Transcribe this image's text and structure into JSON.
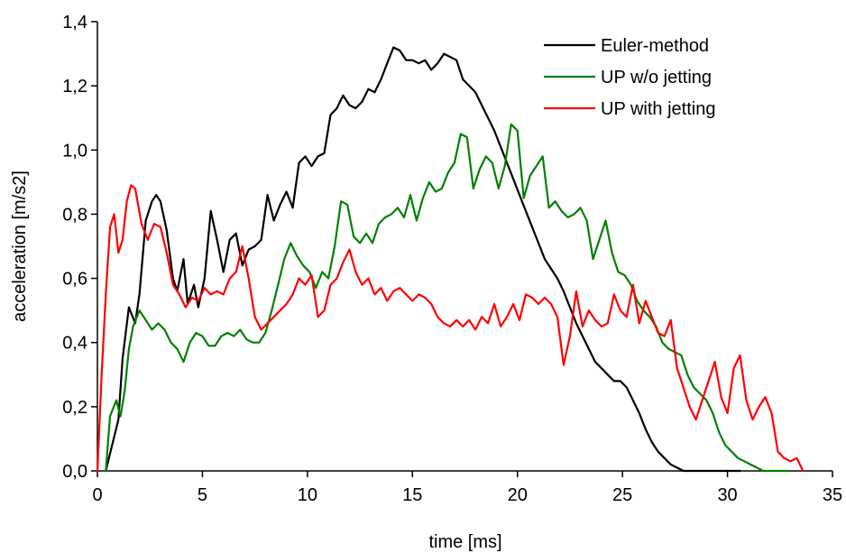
{
  "chart_data": {
    "type": "line",
    "xlabel": "time [ms]",
    "ylabel": "acceleration [m/s2]",
    "xlim": [
      0,
      35
    ],
    "ylim": [
      0,
      1.4
    ],
    "x_ticks": [
      "0",
      "5",
      "10",
      "15",
      "20",
      "25",
      "30",
      "35"
    ],
    "y_ticks": [
      "0,0",
      "0,2",
      "0,4",
      "0,6",
      "0,8",
      "1,0",
      "1,2",
      "1,4"
    ],
    "grid": false,
    "legend_position": "top-right",
    "series": [
      {
        "name": "Euler-method",
        "color": "#000000",
        "x": [
          0.4,
          0.7,
          1.0,
          1.2,
          1.5,
          1.8,
          2.0,
          2.3,
          2.6,
          2.8,
          3.0,
          3.3,
          3.6,
          3.8,
          4.1,
          4.3,
          4.6,
          4.8,
          5.1,
          5.4,
          5.7,
          6.0,
          6.3,
          6.6,
          6.9,
          7.2,
          7.5,
          7.8,
          8.1,
          8.4,
          8.7,
          9.0,
          9.3,
          9.6,
          9.9,
          10.2,
          10.5,
          10.8,
          11.1,
          11.4,
          11.7,
          12.0,
          12.3,
          12.6,
          12.9,
          13.2,
          13.5,
          13.8,
          14.1,
          14.4,
          14.7,
          15.0,
          15.3,
          15.6,
          15.9,
          16.2,
          16.5,
          16.8,
          17.1,
          17.4,
          17.7,
          18.0,
          18.3,
          18.6,
          18.9,
          19.2,
          19.5,
          19.8,
          20.1,
          20.4,
          20.7,
          21.0,
          21.3,
          21.6,
          21.9,
          22.2,
          22.5,
          22.8,
          23.1,
          23.4,
          23.7,
          24.0,
          24.3,
          24.6,
          24.9,
          25.2,
          25.5,
          25.8,
          26.1,
          26.4,
          26.7,
          27.0,
          27.3,
          27.6,
          27.9,
          28.2,
          28.5,
          28.8,
          29.1,
          29.4,
          29.7,
          30.0,
          30.3,
          30.6
        ],
        "values": [
          0.0,
          0.08,
          0.16,
          0.35,
          0.51,
          0.46,
          0.55,
          0.78,
          0.84,
          0.86,
          0.84,
          0.75,
          0.6,
          0.56,
          0.66,
          0.52,
          0.58,
          0.51,
          0.6,
          0.81,
          0.72,
          0.62,
          0.72,
          0.74,
          0.64,
          0.69,
          0.7,
          0.72,
          0.86,
          0.78,
          0.83,
          0.87,
          0.82,
          0.96,
          0.98,
          0.95,
          0.98,
          0.99,
          1.11,
          1.13,
          1.17,
          1.14,
          1.13,
          1.15,
          1.19,
          1.18,
          1.22,
          1.27,
          1.32,
          1.31,
          1.28,
          1.28,
          1.27,
          1.28,
          1.25,
          1.27,
          1.3,
          1.29,
          1.28,
          1.22,
          1.2,
          1.18,
          1.14,
          1.1,
          1.06,
          1.01,
          0.96,
          0.91,
          0.86,
          0.81,
          0.76,
          0.71,
          0.66,
          0.63,
          0.6,
          0.56,
          0.51,
          0.46,
          0.42,
          0.38,
          0.34,
          0.32,
          0.3,
          0.28,
          0.28,
          0.26,
          0.22,
          0.18,
          0.13,
          0.09,
          0.06,
          0.04,
          0.02,
          0.01,
          0.0,
          0.0,
          0.0,
          0.0,
          0.0,
          0.0,
          0.0,
          0.0,
          0.0,
          0.0
        ]
      },
      {
        "name": "UP w/o jetting",
        "color": "#008000",
        "x": [
          0.4,
          0.6,
          0.9,
          1.1,
          1.3,
          1.5,
          1.7,
          2.0,
          2.3,
          2.6,
          2.9,
          3.2,
          3.5,
          3.8,
          4.1,
          4.4,
          4.7,
          5.0,
          5.3,
          5.6,
          5.9,
          6.2,
          6.5,
          6.8,
          7.1,
          7.4,
          7.7,
          8.0,
          8.3,
          8.6,
          8.9,
          9.2,
          9.5,
          9.8,
          10.1,
          10.4,
          10.7,
          11.0,
          11.3,
          11.6,
          11.9,
          12.2,
          12.5,
          12.8,
          13.1,
          13.4,
          13.7,
          14.0,
          14.3,
          14.6,
          14.9,
          15.2,
          15.5,
          15.8,
          16.1,
          16.4,
          16.7,
          17.0,
          17.3,
          17.6,
          17.9,
          18.2,
          18.5,
          18.8,
          19.1,
          19.4,
          19.7,
          20.0,
          20.3,
          20.6,
          20.9,
          21.2,
          21.5,
          21.8,
          22.1,
          22.4,
          22.7,
          23.0,
          23.3,
          23.6,
          23.9,
          24.2,
          24.5,
          24.8,
          25.1,
          25.4,
          25.7,
          26.0,
          26.3,
          26.6,
          26.9,
          27.2,
          27.5,
          27.8,
          28.1,
          28.4,
          28.7,
          29.0,
          29.3,
          29.6,
          29.9,
          30.2,
          30.5,
          30.8,
          31.1,
          31.4,
          31.7,
          32.0,
          32.3,
          32.6,
          32.9
        ],
        "values": [
          0.0,
          0.17,
          0.22,
          0.17,
          0.25,
          0.38,
          0.45,
          0.5,
          0.47,
          0.44,
          0.46,
          0.44,
          0.4,
          0.38,
          0.34,
          0.4,
          0.43,
          0.42,
          0.39,
          0.39,
          0.42,
          0.43,
          0.42,
          0.44,
          0.41,
          0.4,
          0.4,
          0.43,
          0.5,
          0.58,
          0.66,
          0.71,
          0.67,
          0.64,
          0.62,
          0.57,
          0.62,
          0.6,
          0.7,
          0.84,
          0.83,
          0.73,
          0.71,
          0.74,
          0.71,
          0.77,
          0.79,
          0.8,
          0.82,
          0.79,
          0.86,
          0.78,
          0.85,
          0.9,
          0.87,
          0.88,
          0.93,
          0.96,
          1.05,
          1.04,
          0.88,
          0.94,
          0.98,
          0.96,
          0.88,
          0.95,
          1.08,
          1.06,
          0.85,
          0.92,
          0.95,
          0.98,
          0.82,
          0.84,
          0.81,
          0.79,
          0.8,
          0.82,
          0.78,
          0.66,
          0.72,
          0.78,
          0.68,
          0.62,
          0.61,
          0.58,
          0.53,
          0.5,
          0.48,
          0.45,
          0.4,
          0.38,
          0.37,
          0.36,
          0.3,
          0.26,
          0.24,
          0.22,
          0.18,
          0.12,
          0.08,
          0.06,
          0.04,
          0.03,
          0.02,
          0.01,
          0.0,
          0.0,
          0.0,
          0.0,
          0.0
        ]
      },
      {
        "name": "UP with jetting",
        "color": "#ff0000",
        "x": [
          0.0,
          0.2,
          0.4,
          0.6,
          0.8,
          1.0,
          1.2,
          1.4,
          1.6,
          1.8,
          2.1,
          2.4,
          2.7,
          3.0,
          3.3,
          3.6,
          3.9,
          4.2,
          4.5,
          4.8,
          5.1,
          5.4,
          5.7,
          6.0,
          6.3,
          6.6,
          6.9,
          7.2,
          7.5,
          7.8,
          8.1,
          8.4,
          8.7,
          9.0,
          9.3,
          9.6,
          9.9,
          10.2,
          10.5,
          10.8,
          11.1,
          11.4,
          11.7,
          12.0,
          12.3,
          12.6,
          12.9,
          13.2,
          13.5,
          13.8,
          14.1,
          14.4,
          14.7,
          15.0,
          15.3,
          15.6,
          15.9,
          16.2,
          16.5,
          16.8,
          17.1,
          17.4,
          17.7,
          18.0,
          18.3,
          18.6,
          18.9,
          19.2,
          19.5,
          19.8,
          20.1,
          20.4,
          20.7,
          21.0,
          21.3,
          21.6,
          21.9,
          22.2,
          22.5,
          22.8,
          23.1,
          23.4,
          23.7,
          24.0,
          24.3,
          24.6,
          24.9,
          25.2,
          25.5,
          25.8,
          26.1,
          26.4,
          26.7,
          27.0,
          27.3,
          27.6,
          27.9,
          28.2,
          28.5,
          28.8,
          29.1,
          29.4,
          29.7,
          30.0,
          30.3,
          30.6,
          30.9,
          31.2,
          31.5,
          31.8,
          32.1,
          32.4,
          32.7,
          33.0,
          33.3,
          33.6
        ],
        "values": [
          0.0,
          0.3,
          0.55,
          0.76,
          0.8,
          0.68,
          0.72,
          0.84,
          0.89,
          0.88,
          0.77,
          0.72,
          0.77,
          0.76,
          0.68,
          0.58,
          0.55,
          0.51,
          0.54,
          0.53,
          0.57,
          0.55,
          0.56,
          0.55,
          0.6,
          0.62,
          0.7,
          0.6,
          0.48,
          0.44,
          0.46,
          0.48,
          0.5,
          0.52,
          0.55,
          0.6,
          0.58,
          0.61,
          0.48,
          0.5,
          0.58,
          0.6,
          0.65,
          0.69,
          0.62,
          0.58,
          0.6,
          0.55,
          0.57,
          0.53,
          0.56,
          0.57,
          0.55,
          0.53,
          0.55,
          0.54,
          0.52,
          0.48,
          0.46,
          0.45,
          0.47,
          0.45,
          0.47,
          0.44,
          0.48,
          0.46,
          0.52,
          0.45,
          0.48,
          0.52,
          0.47,
          0.55,
          0.54,
          0.52,
          0.54,
          0.52,
          0.48,
          0.33,
          0.42,
          0.56,
          0.45,
          0.5,
          0.47,
          0.45,
          0.46,
          0.55,
          0.5,
          0.48,
          0.58,
          0.46,
          0.53,
          0.48,
          0.43,
          0.42,
          0.47,
          0.32,
          0.26,
          0.2,
          0.16,
          0.22,
          0.28,
          0.34,
          0.23,
          0.18,
          0.32,
          0.36,
          0.22,
          0.16,
          0.2,
          0.23,
          0.18,
          0.06,
          0.04,
          0.03,
          0.04,
          0.0
        ]
      }
    ]
  }
}
